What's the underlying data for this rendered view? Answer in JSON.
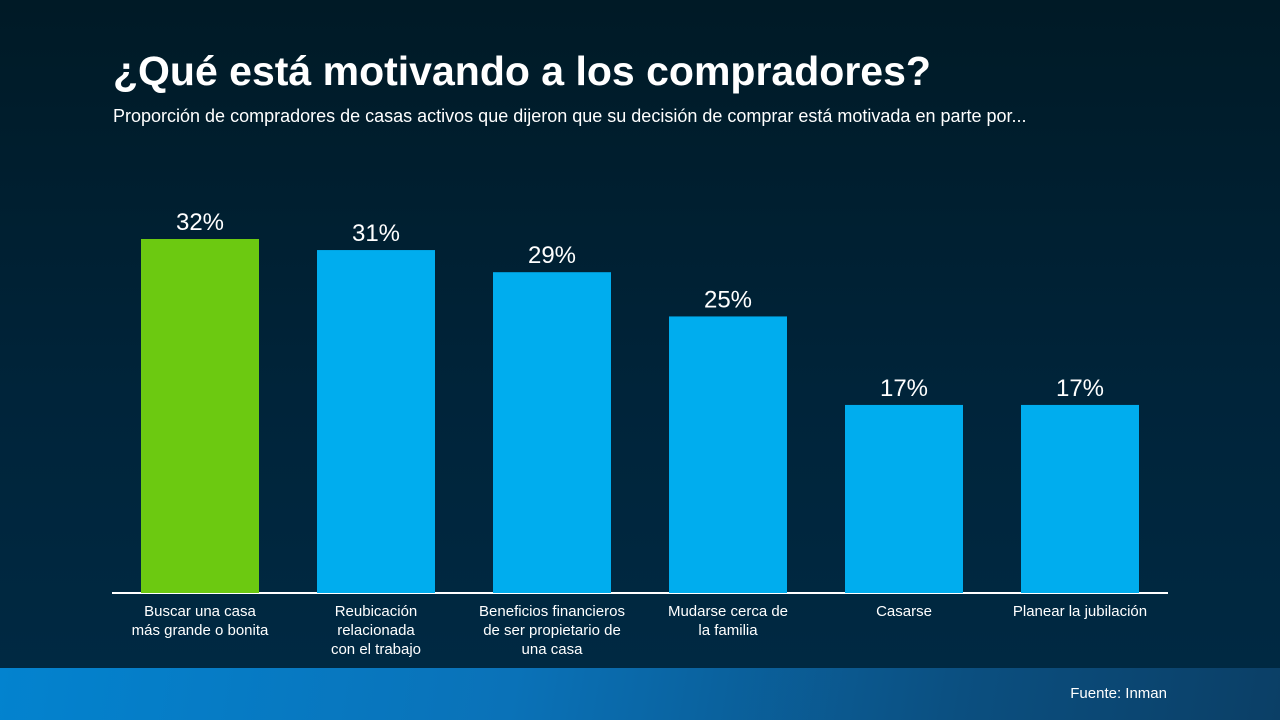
{
  "slide": {
    "title": "¿Qué está motivando a los compradores?",
    "subtitle": "Proporción de compradores de casas activos que dijeron que su decisión de comprar está motivada en parte por...",
    "source": "Fuente: Inman"
  },
  "colors": {
    "highlight": "#6cc911",
    "bar": "#00adee",
    "axis": "#ffffff",
    "text": "#ffffff"
  },
  "chart_data": {
    "type": "bar",
    "categories": [
      [
        "Buscar una casa",
        "más grande o bonita"
      ],
      [
        "Reubicación",
        "relacionada",
        "con el trabajo"
      ],
      [
        "Beneficios financieros",
        "de ser propietario de",
        "una casa"
      ],
      [
        "Mudarse cerca de",
        "la familia"
      ],
      [
        "Casarse"
      ],
      [
        "Planear la jubilación"
      ]
    ],
    "values": [
      32,
      31,
      29,
      25,
      17,
      17
    ],
    "value_labels": [
      "32%",
      "31%",
      "29%",
      "25%",
      "17%",
      "17%"
    ],
    "highlight_index": 0,
    "ylim": [
      0,
      32
    ],
    "xlabel": "",
    "ylabel": "",
    "grid": false,
    "legend": "none"
  }
}
